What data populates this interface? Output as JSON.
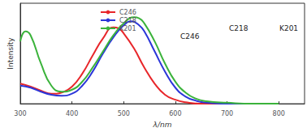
{
  "chart_data": {
    "type": "line",
    "xlabel": "λ/nm",
    "ylabel": "Intensity",
    "xlim": [
      300,
      850
    ],
    "xticks": [
      300,
      400,
      500,
      600,
      700,
      800
    ],
    "ylim": [
      0,
      1
    ],
    "grid": false,
    "legend": "top",
    "tick_labels": "x",
    "annotations": [
      "C246",
      "C218",
      "K201"
    ],
    "series": [
      {
        "name": "C246",
        "color": "#e8262a",
        "x": [
          300,
          320,
          340,
          360,
          370,
          380,
          400,
          420,
          440,
          460,
          480,
          490,
          500,
          520,
          540,
          560,
          580,
          600,
          620,
          650,
          800
        ],
        "values": [
          0.2,
          0.17,
          0.13,
          0.1,
          0.1,
          0.11,
          0.17,
          0.3,
          0.48,
          0.65,
          0.76,
          0.75,
          0.7,
          0.55,
          0.36,
          0.2,
          0.09,
          0.04,
          0.015,
          0,
          0
        ]
      },
      {
        "name": "C218",
        "color": "#2b36d9",
        "x": [
          300,
          320,
          340,
          360,
          380,
          400,
          420,
          440,
          460,
          480,
          500,
          515,
          530,
          540,
          560,
          580,
          600,
          620,
          640,
          660,
          700,
          800
        ],
        "values": [
          0.18,
          0.16,
          0.12,
          0.09,
          0.08,
          0.1,
          0.18,
          0.32,
          0.5,
          0.66,
          0.78,
          0.82,
          0.78,
          0.72,
          0.52,
          0.32,
          0.16,
          0.07,
          0.03,
          0.01,
          0,
          0
        ]
      },
      {
        "name": "K201",
        "color": "#3bb33b",
        "x": [
          300,
          310,
          320,
          340,
          360,
          380,
          400,
          420,
          440,
          460,
          480,
          500,
          520,
          530,
          540,
          560,
          580,
          600,
          620,
          640,
          660,
          700,
          750,
          800
        ],
        "values": [
          0.62,
          0.72,
          0.68,
          0.4,
          0.18,
          0.12,
          0.14,
          0.22,
          0.36,
          0.52,
          0.68,
          0.8,
          0.86,
          0.85,
          0.8,
          0.62,
          0.4,
          0.22,
          0.11,
          0.05,
          0.025,
          0.01,
          0,
          0
        ]
      }
    ]
  }
}
